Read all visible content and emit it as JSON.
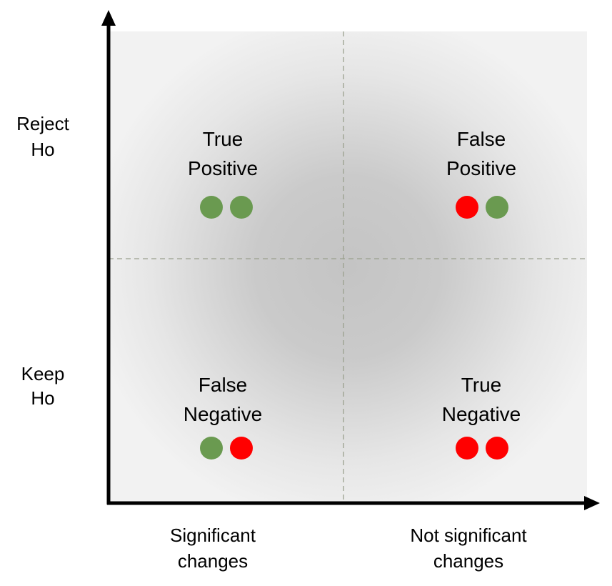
{
  "y_axis": {
    "top_label": [
      "Reject",
      "Ho"
    ],
    "bottom_label": [
      "Keep",
      "Ho"
    ]
  },
  "x_axis": {
    "left_label": [
      "Significant",
      "changes"
    ],
    "right_label": [
      "Not significant",
      "changes"
    ]
  },
  "quadrants": [
    {
      "id": "true-positive",
      "title": [
        "True",
        "Positive"
      ],
      "dots": [
        "green",
        "green"
      ]
    },
    {
      "id": "false-positive",
      "title": [
        "False",
        "Positive"
      ],
      "dots": [
        "red",
        "green"
      ]
    },
    {
      "id": "false-negative",
      "title": [
        "False",
        "Negative"
      ],
      "dots": [
        "green",
        "red"
      ]
    },
    {
      "id": "true-negative",
      "title": [
        "True",
        "Negative"
      ],
      "dots": [
        "red",
        "red"
      ]
    }
  ],
  "colors": {
    "green": "#6a9a50",
    "red": "#ff0000",
    "axis": "#000000",
    "divider": "#9aa08e",
    "panel": "#f2f2f2",
    "panel_center": "#c4c4c4"
  }
}
